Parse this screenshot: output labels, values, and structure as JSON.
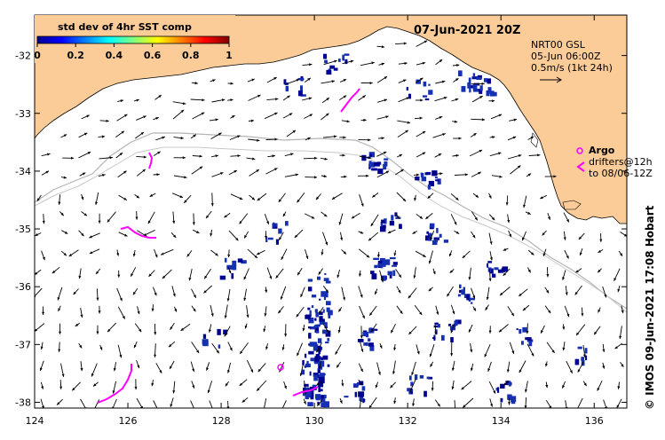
{
  "title": "07-Jun-2021 20Z",
  "colorbar": {
    "label": "std dev of 4hr SST comp",
    "ticks": [
      "0",
      "0.2",
      "0.4",
      "0.6",
      "0.8",
      "1"
    ]
  },
  "current_info": {
    "product": "NRT00 GSL",
    "date": "05-Jun 06:00Z",
    "scale": "0.5m/s (1kt 24h)"
  },
  "argo_legend": {
    "argo_label": "Argo",
    "drifters_label": "drifters@12h",
    "drifters_date": "to 08/06-12Z"
  },
  "credit": "©  IMOS 09-Jun-2021 17:08 Hobart",
  "axes": {
    "x_ticks": [
      "124",
      "126",
      "128",
      "130",
      "132",
      "134",
      "136"
    ],
    "y_ticks": [
      "-32",
      "-33",
      "-34",
      "-35",
      "-36",
      "-37",
      "-38"
    ],
    "xlim": [
      124,
      136.7
    ],
    "ylim": [
      -38.1,
      -31.3
    ]
  },
  "colors": {
    "land": "#fbcc97",
    "arrow": "#000000",
    "drifter": "#ff00ff",
    "contour": "#b4b4b4",
    "sst_high": "#1530b0",
    "sst_low": "#000090"
  }
}
